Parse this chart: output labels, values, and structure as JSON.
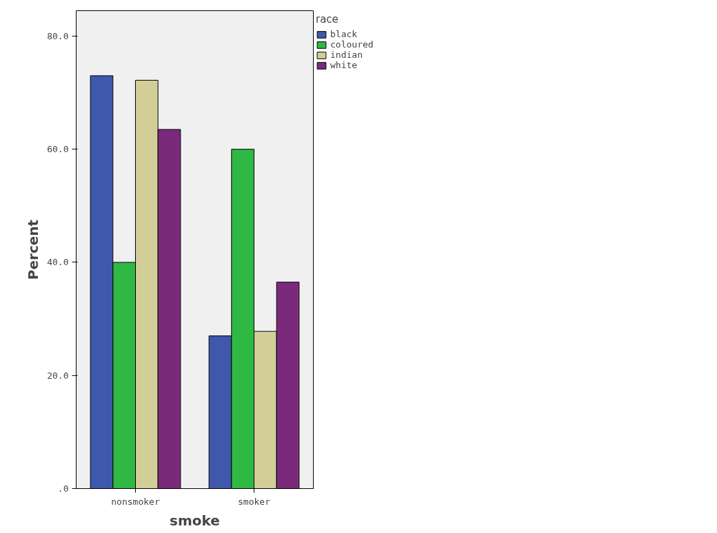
{
  "chart_data": {
    "type": "bar",
    "xlabel": "smoke",
    "ylabel": "Percent",
    "legend_title": "race",
    "categories": [
      "nonsmoker",
      "smoker"
    ],
    "series": [
      {
        "name": "black",
        "color": "#3e58ac",
        "values": [
          73.0,
          27.0
        ]
      },
      {
        "name": "coloured",
        "color": "#2fb844",
        "values": [
          40.0,
          60.0
        ]
      },
      {
        "name": "indian",
        "color": "#d3ce97",
        "values": [
          72.2,
          27.8
        ]
      },
      {
        "name": "white",
        "color": "#7b2a7b",
        "values": [
          63.5,
          36.5
        ]
      }
    ],
    "ylim": [
      0,
      84.5
    ],
    "yticks": [
      {
        "value": 0,
        "label": ".0"
      },
      {
        "value": 20,
        "label": "20.0"
      },
      {
        "value": 40,
        "label": "40.0"
      },
      {
        "value": 60,
        "label": "60.0"
      },
      {
        "value": 80,
        "label": "80.0"
      }
    ],
    "grid": false,
    "legend": "top right"
  }
}
